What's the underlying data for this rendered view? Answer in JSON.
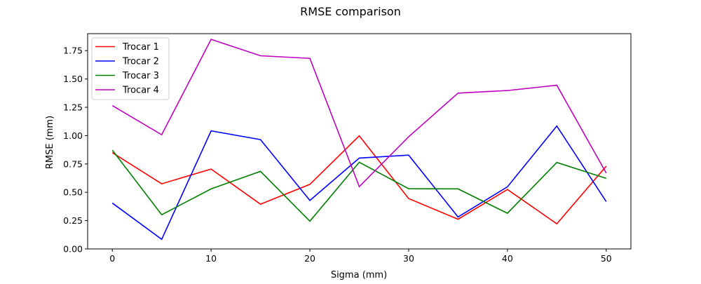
{
  "chart_data": {
    "type": "line",
    "title": "RMSE comparison",
    "xlabel": "Sigma (mm)",
    "ylabel": "RMSE (mm)",
    "x": [
      0,
      5,
      10,
      15,
      20,
      25,
      30,
      35,
      40,
      45,
      50
    ],
    "xlim": [
      -2.5,
      52.5
    ],
    "ylim": [
      0,
      1.9
    ],
    "xticks": [
      0,
      10,
      20,
      30,
      40,
      50
    ],
    "xtick_labels": [
      "0",
      "10",
      "20",
      "30",
      "40",
      "50"
    ],
    "yticks": [
      0,
      0.25,
      0.5,
      0.75,
      1.0,
      1.25,
      1.5,
      1.75
    ],
    "ytick_labels": [
      "0.00",
      "0.25",
      "0.50",
      "0.75",
      "1.00",
      "1.25",
      "1.50",
      "1.75"
    ],
    "grid": false,
    "legend_position": "top-left",
    "series": [
      {
        "name": "Trocar 1",
        "color": "#ff0000",
        "values": [
          0.85,
          0.575,
          0.705,
          0.395,
          0.57,
          0.998,
          0.445,
          0.262,
          0.525,
          0.222,
          0.73
        ]
      },
      {
        "name": "Trocar 2",
        "color": "#0000ff",
        "values": [
          0.405,
          0.085,
          1.042,
          0.965,
          0.428,
          0.802,
          0.828,
          0.282,
          0.548,
          1.085,
          0.418
        ]
      },
      {
        "name": "Trocar 3",
        "color": "#008000",
        "values": [
          0.872,
          0.302,
          0.53,
          0.685,
          0.245,
          0.765,
          0.532,
          0.53,
          0.315,
          0.763,
          0.623
        ]
      },
      {
        "name": "Trocar 4",
        "color": "#bf00bf",
        "values": [
          1.265,
          1.008,
          1.85,
          1.705,
          1.682,
          0.55,
          0.99,
          1.375,
          1.398,
          1.445,
          0.67
        ]
      }
    ]
  }
}
